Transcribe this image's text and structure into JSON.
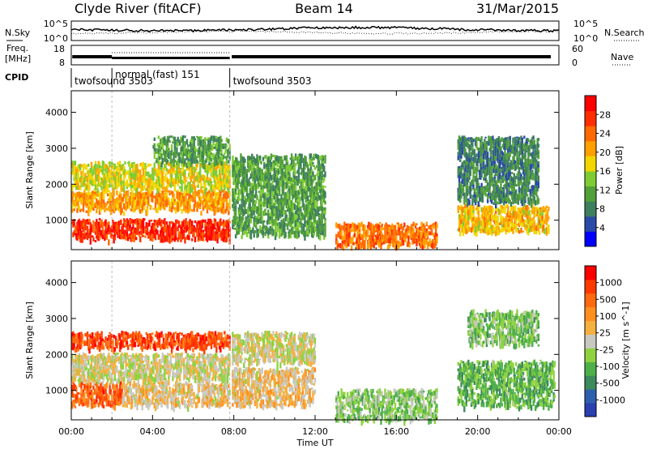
{
  "header": {
    "station": "Clyde River (fitACF)",
    "beam": "Beam 14",
    "date": "31/Mar/2015"
  },
  "noise_panel": {
    "left_label": "N.Sky",
    "right_label": "N.Search",
    "left_ticks": [
      "10^5",
      "10^0"
    ],
    "right_ticks": [
      "10^5",
      "10^0"
    ]
  },
  "freq_panel": {
    "left_label_line1": "Freq.",
    "left_label_line2": "[MHz]",
    "right_label": "Nave",
    "left_ticks": [
      "18",
      "8"
    ],
    "right_ticks": [
      "60",
      "0"
    ]
  },
  "cpid_panel": {
    "label": "CPID",
    "modes": [
      {
        "name": "twofsound 3503",
        "start_hour": 0.0
      },
      {
        "name": "normal (fast) 151",
        "start_hour": 2.0
      },
      {
        "name": "twofsound 3503",
        "start_hour": 7.8
      }
    ]
  },
  "x_axis": {
    "label": "Time UT",
    "tick_labels": [
      "00:00",
      "04:00",
      "08:00",
      "12:00",
      "16:00",
      "20:00",
      "00:00"
    ],
    "range_hours": [
      0,
      24
    ]
  },
  "colors": {
    "power": [
      "#0000ff",
      "#2a4aa8",
      "#3e7f5e",
      "#52a038",
      "#7ecc33",
      "#f2d600",
      "#ffa000",
      "#ff6a00",
      "#ff2e00",
      "#ff0000"
    ],
    "velocity": [
      "#2a3fb0",
      "#2d5fae",
      "#3d8a5c",
      "#4fb04a",
      "#8fd240",
      "#c8c8c0",
      "#f5b040",
      "#ff9020",
      "#ff6a10",
      "#ff3a00",
      "#ff0000"
    ]
  },
  "chart_data": [
    {
      "type": "heatmap",
      "title": "Power",
      "xlabel": "",
      "ylabel": "Slant Range [km]",
      "xlim": [
        0,
        24
      ],
      "ylim": [
        180,
        4600
      ],
      "yticks": [
        "1000",
        "2000",
        "3000",
        "4000"
      ],
      "colorbar": {
        "label": "Power [dB]",
        "ticks": [
          "4",
          "8",
          "12",
          "16",
          "20",
          "24",
          "28"
        ],
        "range": [
          0,
          30
        ]
      },
      "features": [
        {
          "t0": 0.0,
          "t1": 7.8,
          "r0": 500,
          "r1": 1000,
          "level": 26
        },
        {
          "t0": 0.0,
          "t1": 7.8,
          "r0": 1300,
          "r1": 1800,
          "level": 20
        },
        {
          "t0": 0.0,
          "t1": 7.8,
          "r0": 1900,
          "r1": 2600,
          "level": 16
        },
        {
          "t0": 4.0,
          "t1": 7.8,
          "r0": 2600,
          "r1": 3300,
          "level": 10
        },
        {
          "t0": 7.9,
          "t1": 12.5,
          "r0": 600,
          "r1": 2800,
          "level": 10
        },
        {
          "t0": 13.0,
          "t1": 18.0,
          "r0": 300,
          "r1": 900,
          "level": 22
        },
        {
          "t0": 19.0,
          "t1": 23.5,
          "r0": 700,
          "r1": 1400,
          "level": 18
        },
        {
          "t0": 19.0,
          "t1": 23.0,
          "r0": 1500,
          "r1": 3300,
          "level": 8
        }
      ]
    },
    {
      "type": "heatmap",
      "title": "Velocity",
      "xlabel": "Time UT",
      "ylabel": "Slant Range [km]",
      "xlim": [
        0,
        24
      ],
      "ylim": [
        180,
        4600
      ],
      "yticks": [
        "1000",
        "2000",
        "3000",
        "4000"
      ],
      "colorbar": {
        "label": "Velocity [m s^-1]",
        "ticks": [
          "1000",
          "500",
          "100",
          "25",
          "-25",
          "-100",
          "-500",
          "-1000"
        ],
        "range": [
          -1200,
          1200
        ]
      },
      "features": [
        {
          "t0": 0.0,
          "t1": 2.5,
          "r0": 600,
          "r1": 1200,
          "level": 700
        },
        {
          "t0": 2.5,
          "t1": 7.8,
          "r0": 600,
          "r1": 1200,
          "level": 150
        },
        {
          "t0": 0.0,
          "t1": 7.8,
          "r0": 1300,
          "r1": 2000,
          "level": 0
        },
        {
          "t0": 0.0,
          "t1": 7.8,
          "r0": 2200,
          "r1": 2600,
          "level": 800
        },
        {
          "t0": 7.9,
          "t1": 12.0,
          "r0": 600,
          "r1": 1600,
          "level": 150
        },
        {
          "t0": 7.9,
          "t1": 12.0,
          "r0": 1800,
          "r1": 2600,
          "level": 0
        },
        {
          "t0": 13.0,
          "t1": 18.0,
          "r0": 200,
          "r1": 1000,
          "level": -250
        },
        {
          "t0": 19.0,
          "t1": 23.8,
          "r0": 600,
          "r1": 1800,
          "level": -400
        },
        {
          "t0": 19.5,
          "t1": 23.0,
          "r0": 2300,
          "r1": 3200,
          "level": -300
        }
      ]
    }
  ]
}
